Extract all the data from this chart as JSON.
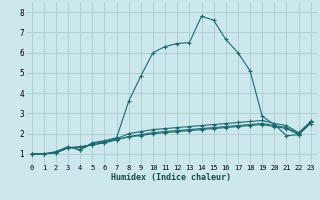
{
  "xlabel": "Humidex (Indice chaleur)",
  "bg_color": "#cde8ec",
  "grid_color": "#b0d0d4",
  "line_color": "#1a6b6e",
  "xlim": [
    -0.5,
    23.5
  ],
  "ylim": [
    0.5,
    8.5
  ],
  "xticks": [
    0,
    1,
    2,
    3,
    4,
    5,
    6,
    7,
    8,
    9,
    10,
    11,
    12,
    13,
    14,
    15,
    16,
    17,
    18,
    19,
    20,
    21,
    22,
    23
  ],
  "yticks": [
    1,
    2,
    3,
    4,
    5,
    6,
    7,
    8
  ],
  "series": [
    {
      "x": [
        0,
        1,
        2,
        3,
        4,
        5,
        6,
        7,
        8,
        9,
        10,
        11,
        12,
        13,
        14,
        15,
        16,
        17,
        18,
        19,
        20,
        21,
        22,
        23
      ],
      "y": [
        1.0,
        1.0,
        1.1,
        1.35,
        1.2,
        1.55,
        1.65,
        1.8,
        3.6,
        4.85,
        6.0,
        6.3,
        6.45,
        6.5,
        7.8,
        7.6,
        6.65,
        6.0,
        5.1,
        2.85,
        2.45,
        1.9,
        1.95,
        2.6
      ]
    },
    {
      "x": [
        0,
        1,
        2,
        3,
        4,
        5,
        6,
        7,
        8,
        9,
        10,
        11,
        12,
        13,
        14,
        15,
        16,
        17,
        18,
        19,
        20,
        21,
        22,
        23
      ],
      "y": [
        1.0,
        1.0,
        1.1,
        1.35,
        1.2,
        1.5,
        1.6,
        1.75,
        2.0,
        2.1,
        2.2,
        2.25,
        2.3,
        2.35,
        2.4,
        2.45,
        2.5,
        2.55,
        2.6,
        2.65,
        2.5,
        2.4,
        2.05,
        2.6
      ]
    },
    {
      "x": [
        0,
        1,
        2,
        3,
        4,
        5,
        6,
        7,
        8,
        9,
        10,
        11,
        12,
        13,
        14,
        15,
        16,
        17,
        18,
        19,
        20,
        21,
        22,
        23
      ],
      "y": [
        1.0,
        1.0,
        1.05,
        1.3,
        1.35,
        1.45,
        1.55,
        1.7,
        1.85,
        1.95,
        2.05,
        2.1,
        2.15,
        2.2,
        2.25,
        2.3,
        2.35,
        2.4,
        2.45,
        2.5,
        2.4,
        2.3,
        2.0,
        2.55
      ]
    },
    {
      "x": [
        0,
        1,
        2,
        3,
        4,
        5,
        6,
        7,
        8,
        9,
        10,
        11,
        12,
        13,
        14,
        15,
        16,
        17,
        18,
        19,
        20,
        21,
        22,
        23
      ],
      "y": [
        1.0,
        1.0,
        1.05,
        1.3,
        1.35,
        1.45,
        1.55,
        1.7,
        1.85,
        1.9,
        2.0,
        2.05,
        2.1,
        2.15,
        2.2,
        2.25,
        2.3,
        2.35,
        2.4,
        2.45,
        2.35,
        2.25,
        1.95,
        2.5
      ]
    }
  ]
}
